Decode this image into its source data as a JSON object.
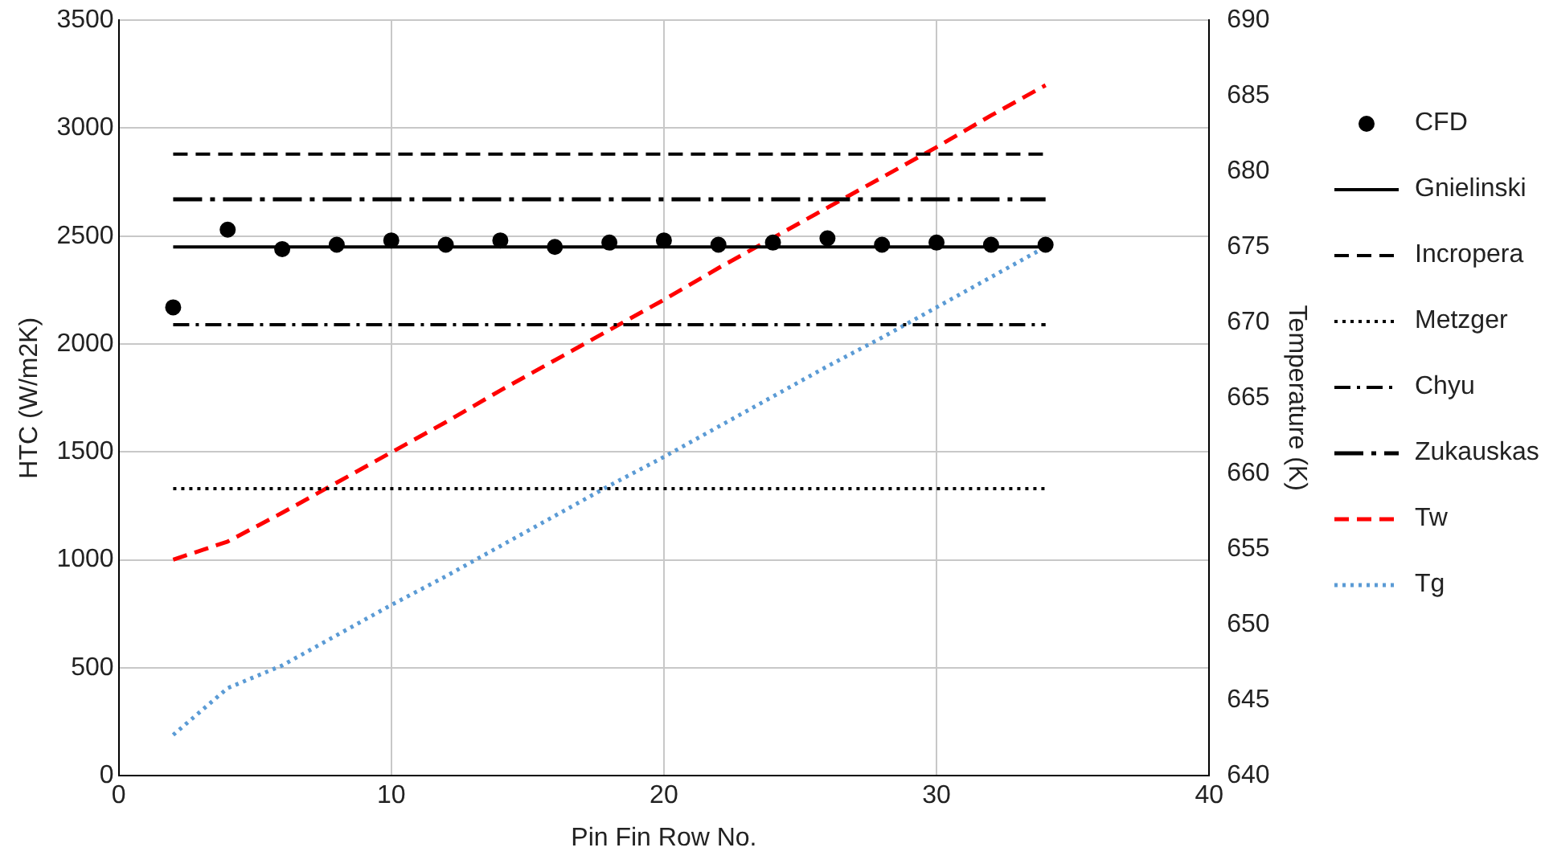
{
  "chart_data": {
    "type": "scatter",
    "xlabel": "Pin Fin Row No.",
    "ylabel": "HTC (W/m2K)",
    "y2label": "Temperature (K)",
    "xlim": [
      0,
      40
    ],
    "xticks": [
      0,
      10,
      20,
      30,
      40
    ],
    "ylim": [
      0,
      3500
    ],
    "yticks": [
      0,
      500,
      1000,
      1500,
      2000,
      2500,
      3000,
      3500
    ],
    "y2lim": [
      640,
      690
    ],
    "y2ticks": [
      640,
      645,
      650,
      655,
      660,
      665,
      670,
      675,
      680,
      685,
      690
    ],
    "grid": true,
    "legend": "right",
    "series": [
      {
        "name": "CFD",
        "type": "scatter",
        "marker": "circle",
        "color": "#000000",
        "x": [
          2,
          4,
          6,
          8,
          10,
          12,
          14,
          16,
          18,
          20,
          22,
          24,
          26,
          28,
          30,
          32,
          34
        ],
        "values": [
          2170,
          2530,
          2440,
          2460,
          2480,
          2460,
          2480,
          2450,
          2470,
          2480,
          2460,
          2470,
          2490,
          2460,
          2470,
          2460,
          2460
        ]
      },
      {
        "name": "Gnielinski",
        "type": "line",
        "line_style": "solid",
        "marker": "none",
        "color": "#000000",
        "x": [
          2,
          34
        ],
        "values": [
          2450,
          2450
        ]
      },
      {
        "name": "Incropera",
        "type": "line",
        "line_style": "dashed",
        "marker": "none",
        "color": "#000000",
        "x": [
          2,
          34
        ],
        "values": [
          2880,
          2880
        ]
      },
      {
        "name": "Metzger",
        "type": "line",
        "line_style": "dotted",
        "marker": "none",
        "color": "#000000",
        "x": [
          2,
          34
        ],
        "values": [
          1330,
          1330
        ]
      },
      {
        "name": "Chyu",
        "type": "line",
        "line_style": "dashdot",
        "marker": "none",
        "color": "#000000",
        "x": [
          2,
          34
        ],
        "values": [
          2090,
          2090
        ]
      },
      {
        "name": "Zukauskas",
        "type": "line",
        "line_style": "longdashdot",
        "marker": "none",
        "color": "#000000",
        "x": [
          2,
          34
        ],
        "values": [
          2670,
          2670
        ]
      },
      {
        "name": "Tw",
        "type": "line",
        "axis": "y2",
        "line_style": "dashed",
        "marker": "none",
        "color": "#ff0000",
        "x": [
          2,
          4,
          6,
          8,
          10,
          12,
          14,
          16,
          18,
          20,
          22,
          24,
          26,
          28,
          30,
          32,
          34
        ],
        "values": [
          654.3,
          655.5,
          657.4,
          659.4,
          661.4,
          663.4,
          665.5,
          667.5,
          669.5,
          671.5,
          673.6,
          675.6,
          677.6,
          679.6,
          681.6,
          683.7,
          685.7
        ]
      },
      {
        "name": "Tg",
        "type": "line",
        "axis": "y2",
        "line_style": "dotted",
        "marker": "none",
        "color": "#5b9bd5",
        "x": [
          2,
          4,
          6,
          8,
          10,
          12,
          14,
          16,
          18,
          20,
          22,
          24,
          26,
          28,
          30,
          32,
          34
        ],
        "values": [
          642.7,
          645.8,
          647.3,
          649.3,
          651.3,
          653.2,
          655.2,
          657.2,
          659.2,
          661.1,
          663.1,
          665.1,
          667.1,
          669.0,
          671.0,
          673.0,
          675.0
        ]
      }
    ]
  }
}
